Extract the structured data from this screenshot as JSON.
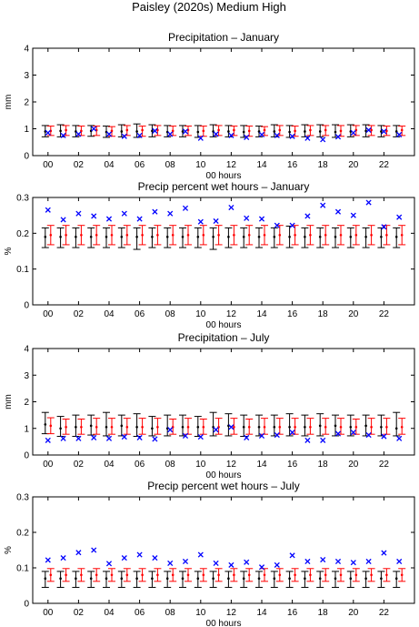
{
  "figure": {
    "title": "Paisley (2020s) Medium High",
    "legend": "none",
    "colors": {
      "observed": "#0000ff",
      "model_a": "#000000",
      "model_b": "#ff0000"
    }
  },
  "chart_data": [
    {
      "type": "errorbar-scatter",
      "title": "Precipitation – January",
      "xlabel": "00 hours",
      "ylabel": "mm",
      "xlim": [
        -1,
        24
      ],
      "ylim": [
        0,
        4
      ],
      "xticks": [
        "00",
        "02",
        "04",
        "06",
        "08",
        "10",
        "12",
        "14",
        "16",
        "18",
        "20",
        "22"
      ],
      "yticks": [
        "0",
        "1",
        "2",
        "3",
        "4"
      ],
      "x": [
        0,
        1,
        2,
        3,
        4,
        5,
        6,
        7,
        8,
        9,
        10,
        11,
        12,
        13,
        14,
        15,
        16,
        17,
        18,
        19,
        20,
        21,
        22,
        23
      ],
      "observed": [
        0.85,
        0.75,
        0.8,
        1.0,
        0.8,
        0.72,
        0.75,
        0.92,
        0.8,
        0.9,
        0.65,
        0.8,
        0.75,
        0.68,
        0.78,
        0.75,
        0.72,
        0.65,
        0.6,
        0.7,
        0.85,
        0.95,
        0.9,
        0.78
      ],
      "series": [
        {
          "mean": [
            0.9,
            0.92,
            0.9,
            0.92,
            0.88,
            0.9,
            0.9,
            0.92,
            0.88,
            0.9,
            0.88,
            0.9,
            0.9,
            0.88,
            0.9,
            0.9,
            0.88,
            0.9,
            0.9,
            0.88,
            0.9,
            0.92,
            0.9,
            0.9
          ],
          "low": [
            0.7,
            0.7,
            0.7,
            0.72,
            0.68,
            0.7,
            0.68,
            0.7,
            0.7,
            0.7,
            0.68,
            0.7,
            0.7,
            0.68,
            0.7,
            0.7,
            0.68,
            0.7,
            0.7,
            0.68,
            0.7,
            0.7,
            0.7,
            0.7
          ],
          "high": [
            1.12,
            1.15,
            1.12,
            1.12,
            1.1,
            1.15,
            1.18,
            1.15,
            1.12,
            1.12,
            1.12,
            1.15,
            1.12,
            1.12,
            1.1,
            1.15,
            1.12,
            1.15,
            1.15,
            1.15,
            1.15,
            1.15,
            1.12,
            1.12
          ]
        },
        {
          "mean": [
            0.92,
            0.95,
            0.92,
            0.95,
            0.92,
            0.95,
            0.95,
            0.95,
            0.92,
            0.95,
            0.92,
            0.95,
            0.95,
            0.92,
            0.95,
            0.95,
            0.92,
            0.95,
            0.95,
            0.92,
            0.95,
            0.95,
            0.92,
            0.95
          ],
          "low": [
            0.75,
            0.75,
            0.75,
            0.75,
            0.72,
            0.75,
            0.72,
            0.75,
            0.75,
            0.75,
            0.72,
            0.75,
            0.75,
            0.72,
            0.75,
            0.75,
            0.72,
            0.75,
            0.75,
            0.72,
            0.75,
            0.75,
            0.75,
            0.75
          ],
          "high": [
            1.1,
            1.12,
            1.1,
            1.1,
            1.08,
            1.12,
            1.1,
            1.12,
            1.1,
            1.1,
            1.1,
            1.12,
            1.1,
            1.1,
            1.08,
            1.12,
            1.1,
            1.12,
            1.12,
            1.12,
            1.12,
            1.12,
            1.1,
            1.1
          ]
        }
      ]
    },
    {
      "type": "errorbar-scatter",
      "title": "Precip percent wet hours – January",
      "xlabel": "00 hours",
      "ylabel": "%",
      "xlim": [
        -1,
        24
      ],
      "ylim": [
        0,
        0.3
      ],
      "xticks": [
        "00",
        "02",
        "04",
        "06",
        "08",
        "10",
        "12",
        "14",
        "16",
        "18",
        "20",
        "22"
      ],
      "yticks": [
        "0",
        "0.1",
        "0.2",
        "0.3"
      ],
      "x": [
        0,
        1,
        2,
        3,
        4,
        5,
        6,
        7,
        8,
        9,
        10,
        11,
        12,
        13,
        14,
        15,
        16,
        17,
        18,
        19,
        20,
        21,
        22,
        23
      ],
      "observed": [
        0.265,
        0.238,
        0.255,
        0.248,
        0.24,
        0.255,
        0.24,
        0.26,
        0.255,
        0.27,
        0.232,
        0.234,
        0.272,
        0.242,
        0.24,
        0.222,
        0.222,
        0.248,
        0.278,
        0.26,
        0.25,
        0.286,
        0.218,
        0.245
      ],
      "series": [
        {
          "mean": [
            0.19,
            0.19,
            0.19,
            0.19,
            0.19,
            0.19,
            0.19,
            0.19,
            0.19,
            0.19,
            0.19,
            0.19,
            0.19,
            0.19,
            0.19,
            0.19,
            0.19,
            0.19,
            0.19,
            0.19,
            0.19,
            0.19,
            0.19,
            0.19
          ],
          "low": [
            0.16,
            0.16,
            0.16,
            0.16,
            0.16,
            0.16,
            0.155,
            0.16,
            0.16,
            0.16,
            0.16,
            0.155,
            0.16,
            0.16,
            0.16,
            0.16,
            0.16,
            0.16,
            0.16,
            0.16,
            0.16,
            0.16,
            0.16,
            0.16
          ],
          "high": [
            0.215,
            0.215,
            0.215,
            0.215,
            0.215,
            0.215,
            0.215,
            0.215,
            0.215,
            0.215,
            0.215,
            0.215,
            0.215,
            0.215,
            0.215,
            0.215,
            0.22,
            0.215,
            0.215,
            0.215,
            0.215,
            0.215,
            0.215,
            0.215
          ]
        },
        {
          "mean": [
            0.195,
            0.195,
            0.195,
            0.195,
            0.195,
            0.195,
            0.195,
            0.195,
            0.195,
            0.195,
            0.195,
            0.195,
            0.195,
            0.195,
            0.195,
            0.195,
            0.195,
            0.195,
            0.195,
            0.195,
            0.195,
            0.195,
            0.195,
            0.195
          ],
          "low": [
            0.168,
            0.168,
            0.168,
            0.168,
            0.168,
            0.168,
            0.168,
            0.168,
            0.168,
            0.168,
            0.168,
            0.168,
            0.168,
            0.168,
            0.168,
            0.168,
            0.168,
            0.168,
            0.168,
            0.168,
            0.168,
            0.168,
            0.168,
            0.168
          ],
          "high": [
            0.222,
            0.222,
            0.222,
            0.222,
            0.222,
            0.222,
            0.222,
            0.222,
            0.222,
            0.222,
            0.222,
            0.222,
            0.222,
            0.222,
            0.222,
            0.222,
            0.222,
            0.222,
            0.222,
            0.222,
            0.222,
            0.222,
            0.222,
            0.222
          ]
        }
      ]
    },
    {
      "type": "errorbar-scatter",
      "title": "Precipitation – July",
      "xlabel": "00 hours",
      "ylabel": "mm",
      "xlim": [
        -1,
        24
      ],
      "ylim": [
        0,
        4
      ],
      "xticks": [
        "00",
        "02",
        "04",
        "06",
        "08",
        "10",
        "12",
        "14",
        "16",
        "18",
        "20",
        "22"
      ],
      "yticks": [
        "0",
        "1",
        "2",
        "3",
        "4"
      ],
      "x": [
        0,
        1,
        2,
        3,
        4,
        5,
        6,
        7,
        8,
        9,
        10,
        11,
        12,
        13,
        14,
        15,
        16,
        17,
        18,
        19,
        20,
        21,
        22,
        23
      ],
      "observed": [
        0.55,
        0.62,
        0.62,
        0.65,
        0.62,
        0.68,
        0.65,
        0.6,
        0.95,
        0.72,
        0.68,
        0.95,
        1.05,
        0.65,
        0.72,
        0.75,
        0.85,
        0.55,
        0.55,
        0.8,
        0.85,
        0.75,
        0.7,
        0.62
      ],
      "series": [
        {
          "mean": [
            1.15,
            1.0,
            1.05,
            1.1,
            1.05,
            1.1,
            1.05,
            1.0,
            1.0,
            1.05,
            1.05,
            1.05,
            1.1,
            1.05,
            1.05,
            1.05,
            1.05,
            1.05,
            1.1,
            1.1,
            1.05,
            1.1,
            1.05,
            1.0
          ],
          "low": [
            0.8,
            0.7,
            0.7,
            0.75,
            0.72,
            0.72,
            0.7,
            0.72,
            0.72,
            0.72,
            0.7,
            0.72,
            0.72,
            0.7,
            0.72,
            0.72,
            0.72,
            0.72,
            0.72,
            0.72,
            0.72,
            0.72,
            0.72,
            0.72
          ],
          "high": [
            1.6,
            1.45,
            1.5,
            1.5,
            1.6,
            1.5,
            1.55,
            1.45,
            1.5,
            1.5,
            1.45,
            1.6,
            1.55,
            1.5,
            1.5,
            1.5,
            1.55,
            1.5,
            1.55,
            1.5,
            1.5,
            1.5,
            1.5,
            1.6
          ]
        },
        {
          "mean": [
            1.1,
            1.05,
            1.05,
            1.05,
            1.05,
            1.05,
            1.05,
            1.05,
            1.05,
            1.05,
            1.05,
            1.05,
            1.05,
            1.05,
            1.05,
            1.05,
            1.05,
            1.05,
            1.05,
            1.05,
            1.05,
            1.05,
            1.05,
            1.05
          ],
          "low": [
            0.8,
            0.78,
            0.78,
            0.78,
            0.78,
            0.78,
            0.78,
            0.78,
            0.78,
            0.78,
            0.78,
            0.78,
            0.78,
            0.78,
            0.78,
            0.78,
            0.78,
            0.78,
            0.78,
            0.78,
            0.78,
            0.78,
            0.78,
            0.78
          ],
          "high": [
            1.4,
            1.35,
            1.35,
            1.38,
            1.38,
            1.38,
            1.38,
            1.38,
            1.35,
            1.38,
            1.35,
            1.38,
            1.38,
            1.35,
            1.38,
            1.38,
            1.38,
            1.38,
            1.38,
            1.38,
            1.35,
            1.38,
            1.38,
            1.38
          ]
        }
      ]
    },
    {
      "type": "errorbar-scatter",
      "title": "Precip percent wet hours – July",
      "xlabel": "00 hours",
      "ylabel": "%",
      "xlim": [
        -1,
        24
      ],
      "ylim": [
        0,
        0.3
      ],
      "xticks": [
        "00",
        "02",
        "04",
        "06",
        "08",
        "10",
        "12",
        "14",
        "16",
        "18",
        "20",
        "22"
      ],
      "yticks": [
        "0",
        "0.1",
        "0.2",
        "0.3"
      ],
      "x": [
        0,
        1,
        2,
        3,
        4,
        5,
        6,
        7,
        8,
        9,
        10,
        11,
        12,
        13,
        14,
        15,
        16,
        17,
        18,
        19,
        20,
        21,
        22,
        23
      ],
      "observed": [
        0.122,
        0.128,
        0.143,
        0.15,
        0.112,
        0.128,
        0.137,
        0.128,
        0.113,
        0.118,
        0.137,
        0.113,
        0.108,
        0.116,
        0.102,
        0.108,
        0.135,
        0.118,
        0.123,
        0.118,
        0.115,
        0.118,
        0.142,
        0.118
      ],
      "series": [
        {
          "mean": [
            0.07,
            0.07,
            0.07,
            0.07,
            0.07,
            0.07,
            0.07,
            0.07,
            0.07,
            0.07,
            0.07,
            0.07,
            0.07,
            0.07,
            0.07,
            0.07,
            0.07,
            0.07,
            0.07,
            0.07,
            0.07,
            0.07,
            0.07,
            0.07
          ],
          "low": [
            0.045,
            0.045,
            0.045,
            0.045,
            0.045,
            0.045,
            0.045,
            0.045,
            0.045,
            0.045,
            0.045,
            0.045,
            0.045,
            0.045,
            0.045,
            0.045,
            0.045,
            0.045,
            0.045,
            0.045,
            0.045,
            0.045,
            0.045,
            0.045
          ],
          "high": [
            0.09,
            0.09,
            0.09,
            0.09,
            0.09,
            0.09,
            0.09,
            0.09,
            0.09,
            0.09,
            0.09,
            0.09,
            0.09,
            0.09,
            0.09,
            0.09,
            0.09,
            0.09,
            0.09,
            0.09,
            0.09,
            0.09,
            0.09,
            0.09
          ]
        },
        {
          "mean": [
            0.08,
            0.08,
            0.08,
            0.08,
            0.08,
            0.08,
            0.08,
            0.08,
            0.08,
            0.08,
            0.08,
            0.08,
            0.08,
            0.08,
            0.08,
            0.08,
            0.08,
            0.08,
            0.08,
            0.08,
            0.08,
            0.08,
            0.08,
            0.08
          ],
          "low": [
            0.062,
            0.062,
            0.062,
            0.062,
            0.062,
            0.062,
            0.062,
            0.062,
            0.062,
            0.062,
            0.062,
            0.062,
            0.062,
            0.062,
            0.062,
            0.062,
            0.062,
            0.062,
            0.062,
            0.062,
            0.062,
            0.062,
            0.062,
            0.062
          ],
          "high": [
            0.098,
            0.098,
            0.098,
            0.098,
            0.098,
            0.098,
            0.098,
            0.098,
            0.098,
            0.098,
            0.098,
            0.098,
            0.098,
            0.098,
            0.098,
            0.098,
            0.098,
            0.098,
            0.098,
            0.098,
            0.098,
            0.098,
            0.098,
            0.098
          ]
        }
      ]
    }
  ]
}
